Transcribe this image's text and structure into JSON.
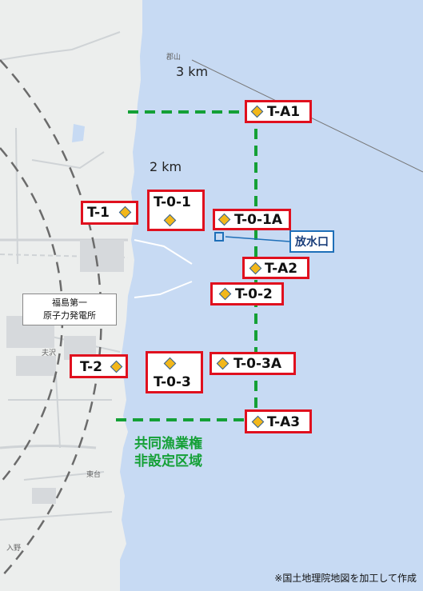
{
  "distance_rings": [
    {
      "label": "3 km"
    },
    {
      "label": "2 km"
    }
  ],
  "monitoring_points": [
    {
      "id": "T-1"
    },
    {
      "id": "T-0-1"
    },
    {
      "id": "T-0-1A"
    },
    {
      "id": "T-A1"
    },
    {
      "id": "T-A2"
    },
    {
      "id": "T-0-2"
    },
    {
      "id": "T-2"
    },
    {
      "id": "T-0-3"
    },
    {
      "id": "T-0-3A"
    },
    {
      "id": "T-A3"
    }
  ],
  "discharge_outlet": {
    "label": "放水口"
  },
  "plant": {
    "line1": "福島第一",
    "line2": "原子力発電所"
  },
  "fishing_zone": {
    "line1": "共同漁業権",
    "line2": "非設定区域"
  },
  "place_names": {
    "top": "郡山",
    "mid": "東台",
    "bottom": "入野",
    "small": "夫沢"
  },
  "credit": "※国土地理院地図を加工して作成",
  "colors": {
    "sea": "#c7daf3",
    "land": "#eceeed",
    "point_border": "#e0101e",
    "point_marker": "#f2b71a",
    "zone_line": "#14a036",
    "outlet": "#1e6fb8"
  }
}
